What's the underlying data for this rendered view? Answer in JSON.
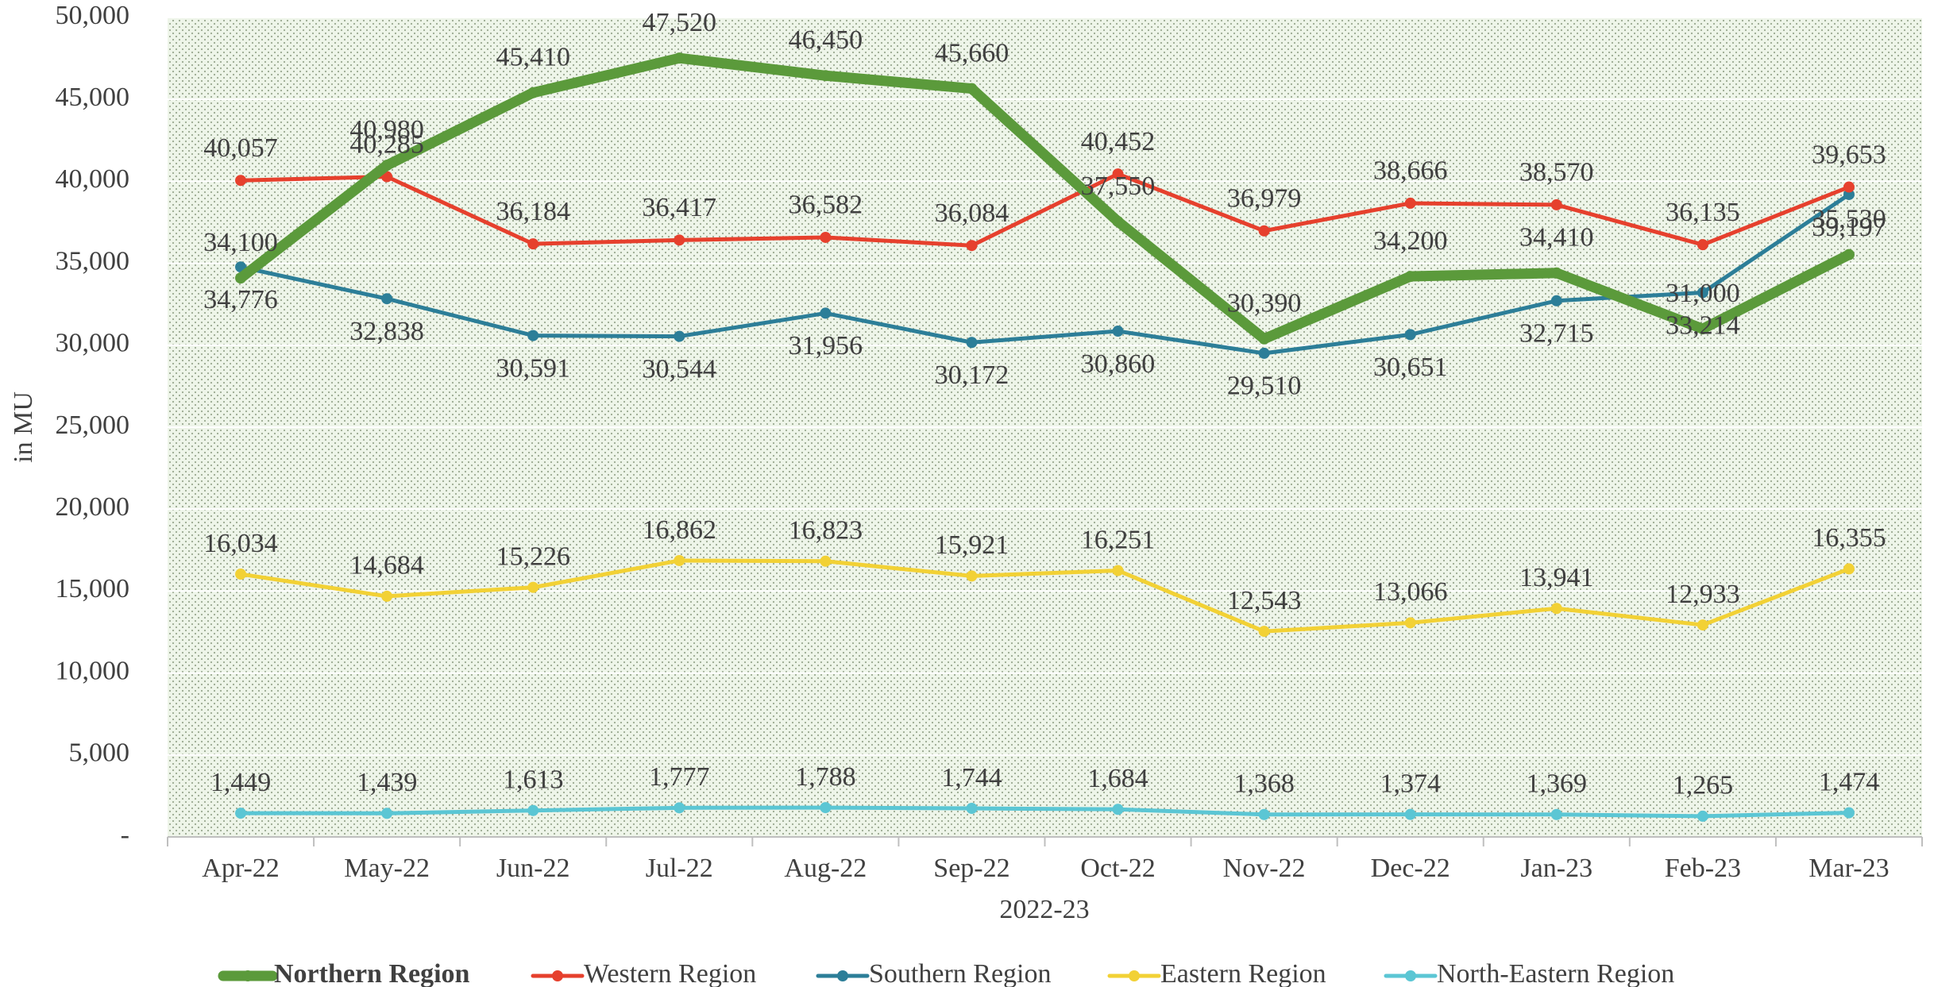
{
  "chart_data": {
    "type": "line",
    "x_label": "2022-23",
    "y_label": "in MU",
    "categories": [
      "Apr-22",
      "May-22",
      "Jun-22",
      "Jul-22",
      "Aug-22",
      "Sep-22",
      "Oct-22",
      "Nov-22",
      "Dec-22",
      "Jan-23",
      "Feb-23",
      "Mar-23"
    ],
    "ylim": [
      0,
      50000
    ],
    "yticks": [
      {
        "value": 0,
        "label": "-"
      },
      {
        "value": 5000,
        "label": "5,000"
      },
      {
        "value": 10000,
        "label": "10,000"
      },
      {
        "value": 15000,
        "label": "15,000"
      },
      {
        "value": 20000,
        "label": "20,000"
      },
      {
        "value": 25000,
        "label": "25,000"
      },
      {
        "value": 30000,
        "label": "30,000"
      },
      {
        "value": 35000,
        "label": "35,000"
      },
      {
        "value": 40000,
        "label": "40,000"
      },
      {
        "value": 45000,
        "label": "45,000"
      },
      {
        "value": 50000,
        "label": "50,000"
      }
    ],
    "grid": true,
    "legend": "bottom",
    "series": [
      {
        "name": "Northern Region",
        "color": "#5b9a3b",
        "values": [
          34100,
          40980,
          45410,
          47520,
          46450,
          45660,
          37550,
          30390,
          34200,
          34410,
          31000,
          35530
        ],
        "value_labels": [
          "34,100",
          "40,980",
          "45,410",
          "47,520",
          "46,450",
          "45,660",
          "37,550",
          "30,390",
          "34,200",
          "34,410",
          "31,000",
          "35,530"
        ]
      },
      {
        "name": "Western Region",
        "color": "#e6402d",
        "values": [
          40057,
          40285,
          36184,
          36417,
          36582,
          36084,
          40452,
          36979,
          38666,
          38570,
          36135,
          39653
        ],
        "value_labels": [
          "40,057",
          "40,285",
          "36,184",
          "36,417",
          "36,582",
          "36,084",
          "40,452",
          "36,979",
          "38,666",
          "38,570",
          "36,135",
          "39,653"
        ]
      },
      {
        "name": "Southern Region",
        "color": "#2c7e98",
        "values": [
          34776,
          32838,
          30591,
          30544,
          31956,
          30172,
          30860,
          29510,
          30651,
          32715,
          33214,
          39197
        ],
        "value_labels": [
          "34,776",
          "32,838",
          "30,591",
          "30,544",
          "31,956",
          "30,172",
          "30,860",
          "29,510",
          "30,651",
          "32,715",
          "33,214",
          "39,197"
        ]
      },
      {
        "name": "Eastern Region",
        "color": "#f2d135",
        "values": [
          16034,
          14684,
          15226,
          16862,
          16823,
          15921,
          16251,
          12543,
          13066,
          13941,
          12933,
          16355
        ],
        "value_labels": [
          "16,034",
          "14,684",
          "15,226",
          "16,862",
          "16,823",
          "15,921",
          "16,251",
          "12,543",
          "13,066",
          "13,941",
          "12,933",
          "16,355"
        ]
      },
      {
        "name": "North-Eastern Region",
        "color": "#5bc6d4",
        "values": [
          1449,
          1439,
          1613,
          1777,
          1788,
          1744,
          1684,
          1368,
          1374,
          1369,
          1265,
          1474
        ],
        "value_labels": [
          "1,449",
          "1,439",
          "1,613",
          "1,777",
          "1,788",
          "1,744",
          "1,684",
          "1,368",
          "1,374",
          "1,369",
          "1,265",
          "1,474"
        ]
      }
    ]
  }
}
